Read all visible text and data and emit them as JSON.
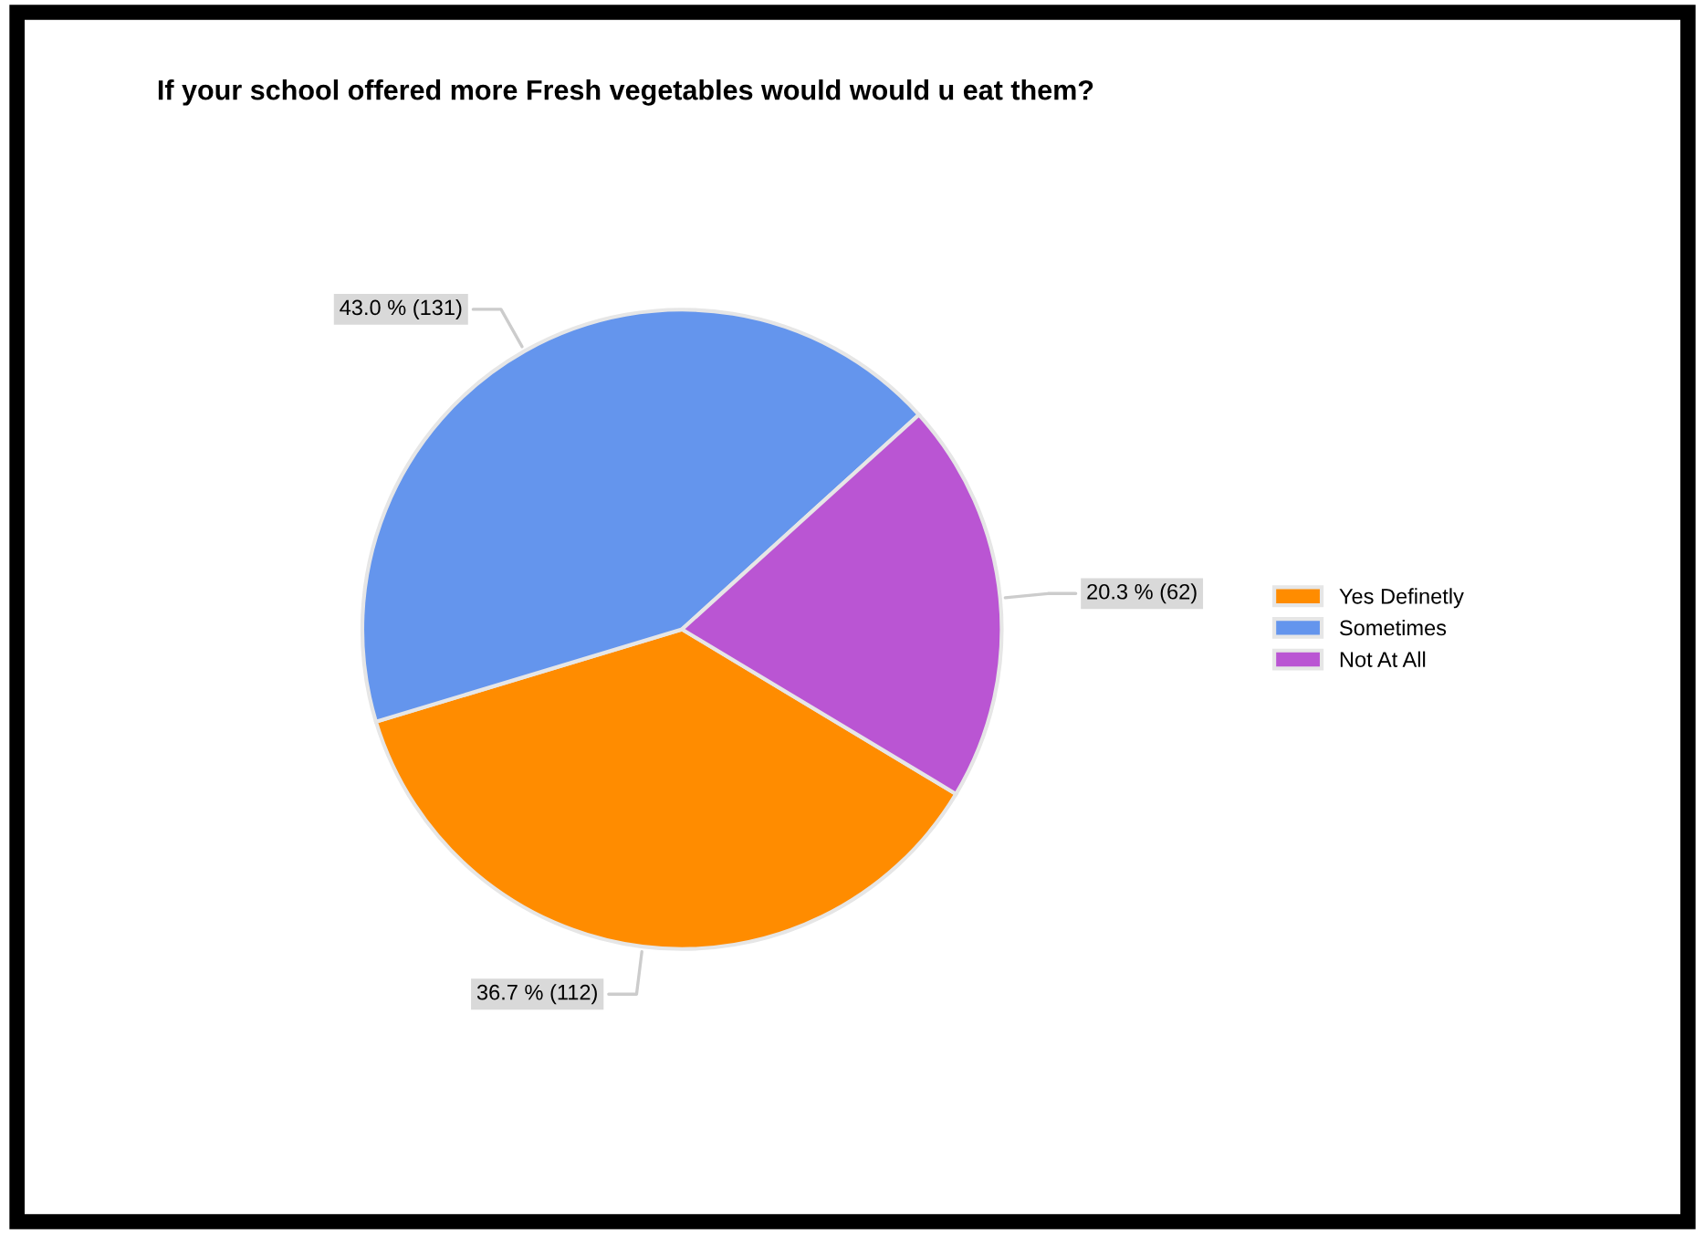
{
  "chart_data": {
    "type": "pie",
    "title": "If your school offered more Fresh vegetables would would u eat them?",
    "categories": [
      "Yes Definetly",
      "Sometimes",
      "Not At All"
    ],
    "values": [
      112,
      131,
      62
    ],
    "colors": [
      "#ff8c00",
      "#6495ed",
      "#ba55d3"
    ],
    "value_labels": [
      "36.7 % (112)",
      "43.0 % (131)",
      "20.3 % (62)"
    ],
    "legend": "right"
  }
}
